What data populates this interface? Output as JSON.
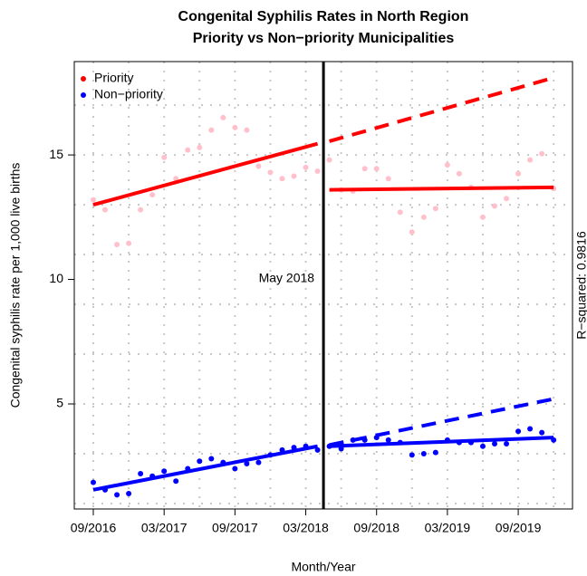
{
  "chart_data": {
    "type": "scatter",
    "title": "Congenital Syphilis Rates in North Region",
    "subtitle": "Priority vs Non−priority Municipalities",
    "x_label": "Month/Year",
    "y_label": "Congenital syphilis rate per 1,000 live births",
    "right_label": "R−squared: 0.9816",
    "annotation": {
      "text": "May 2018",
      "x": "05/2018"
    },
    "legend": "topleft",
    "x": [
      "09/2016",
      "10/2016",
      "11/2016",
      "12/2016",
      "01/2017",
      "02/2017",
      "03/2017",
      "04/2017",
      "05/2017",
      "06/2017",
      "07/2017",
      "08/2017",
      "09/2017",
      "10/2017",
      "11/2017",
      "12/2017",
      "01/2018",
      "02/2018",
      "03/2018",
      "04/2018",
      "05/2018",
      "06/2018",
      "07/2018",
      "08/2018",
      "09/2018",
      "10/2018",
      "11/2018",
      "12/2018",
      "01/2019",
      "02/2019",
      "03/2019",
      "04/2019",
      "05/2019",
      "06/2019",
      "07/2019",
      "08/2019",
      "09/2019",
      "10/2019",
      "11/2019",
      "12/2019"
    ],
    "xticks": [
      "09/2016",
      "03/2017",
      "09/2017",
      "03/2018",
      "09/2018",
      "03/2019",
      "09/2019"
    ],
    "xgrid": [
      "09/2016",
      "12/2016",
      "03/2017",
      "06/2017",
      "09/2017",
      "12/2017",
      "03/2018",
      "06/2018",
      "09/2018",
      "12/2018",
      "03/2019",
      "06/2019",
      "09/2019",
      "12/2019"
    ],
    "ylim": [
      0.78,
      18.75
    ],
    "yticks": [
      5,
      10,
      15
    ],
    "ygrid": [
      1,
      3,
      5,
      7,
      9,
      11,
      13,
      15,
      17
    ],
    "series": [
      {
        "name": "Priority",
        "color": "#ff0000",
        "point_color": "#ffc0cb",
        "values": [
          13.2,
          12.8,
          11.4,
          11.45,
          12.8,
          13.4,
          14.9,
          14.05,
          15.2,
          15.3,
          16.0,
          16.5,
          16.1,
          16.0,
          14.55,
          14.3,
          14.05,
          14.15,
          14.5,
          14.35,
          14.8,
          13.6,
          13.55,
          14.45,
          14.45,
          14.05,
          12.7,
          11.9,
          12.5,
          12.85,
          14.6,
          14.25,
          13.7,
          12.5,
          12.95,
          13.25,
          14.25,
          14.8,
          15.05,
          13.65
        ],
        "trends": [
          {
            "x": [
              "09/2016",
              "04/2018"
            ],
            "values": [
              13.0,
              15.45
            ],
            "dashed": false
          },
          {
            "x": [
              "05/2018",
              "12/2019"
            ],
            "values": [
              13.6,
              13.7
            ],
            "dashed": false
          },
          {
            "x": [
              "05/2018",
              "12/2019"
            ],
            "values": [
              15.55,
              18.1
            ],
            "dashed": true
          }
        ]
      },
      {
        "name": "Non−priority",
        "color": "#0000ff",
        "point_color": "#0000ff",
        "values": [
          1.85,
          1.55,
          1.35,
          1.4,
          2.2,
          2.1,
          2.3,
          1.9,
          2.4,
          2.7,
          2.8,
          2.65,
          2.4,
          2.6,
          2.65,
          2.95,
          3.15,
          3.25,
          3.3,
          3.15,
          3.3,
          3.2,
          3.55,
          3.55,
          3.65,
          3.55,
          3.45,
          2.95,
          3.0,
          3.05,
          3.55,
          3.45,
          3.45,
          3.3,
          3.4,
          3.4,
          3.9,
          4.0,
          3.85,
          3.55
        ],
        "trends": [
          {
            "x": [
              "09/2016",
              "04/2018"
            ],
            "values": [
              1.55,
              3.3
            ],
            "dashed": false
          },
          {
            "x": [
              "05/2018",
              "12/2019"
            ],
            "values": [
              3.3,
              3.65
            ],
            "dashed": false
          },
          {
            "x": [
              "05/2018",
              "12/2019"
            ],
            "values": [
              3.35,
              5.2
            ],
            "dashed": true
          }
        ]
      }
    ]
  }
}
